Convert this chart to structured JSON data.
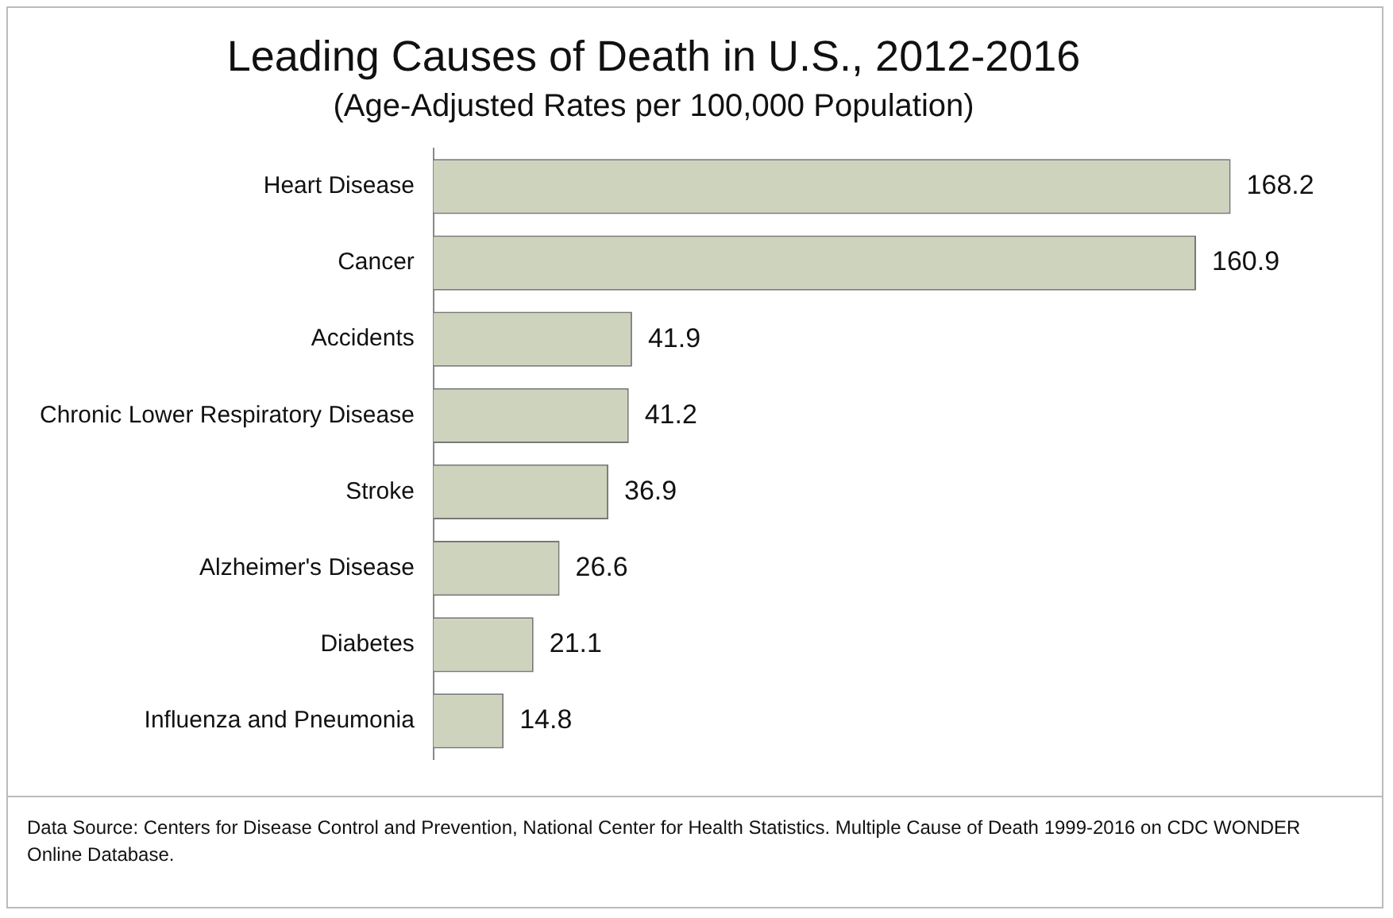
{
  "chart_data": {
    "type": "bar",
    "orientation": "horizontal",
    "title": "Leading Causes of Death in U.S., 2012-2016",
    "subtitle": "(Age-Adjusted Rates per 100,000 Population)",
    "categories": [
      "Heart Disease",
      "Cancer",
      "Accidents",
      "Chronic Lower Respiratory Disease",
      "Stroke",
      "Alzheimer's Disease",
      "Diabetes",
      "Influenza and Pneumonia"
    ],
    "values": [
      168.2,
      160.9,
      41.9,
      41.2,
      36.9,
      26.6,
      21.1,
      14.8
    ],
    "color": "#cdd3bc",
    "data_labels": true,
    "grid": false,
    "legend": false,
    "tick_labels": "y",
    "annotations": [
      "Data Source: Centers for Disease Control and Prevention, National Center for Health Statistics.  Multiple Cause of Death 1999-2016 on CDC WONDER Online Database."
    ]
  }
}
